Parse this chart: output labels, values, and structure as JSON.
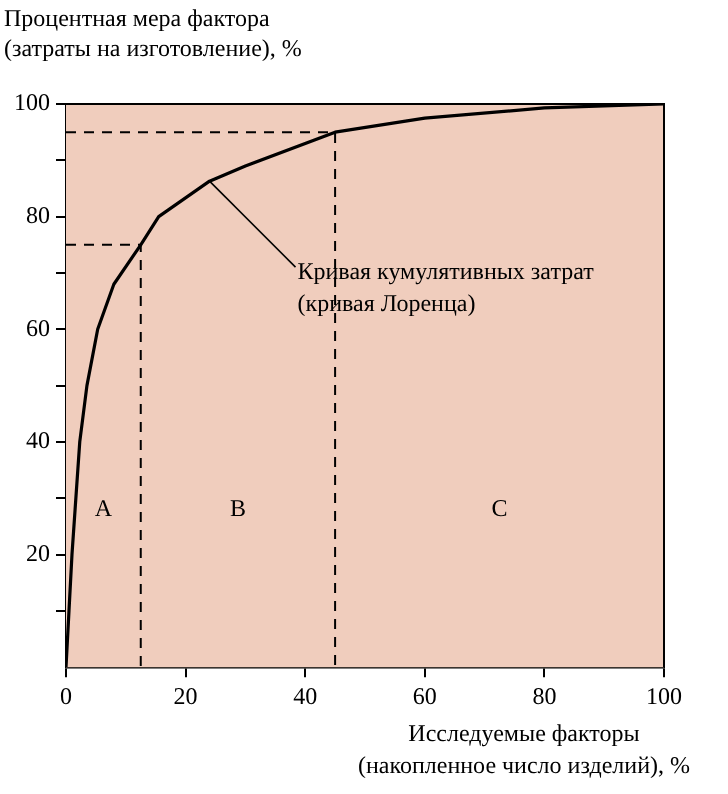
{
  "chart_data": {
    "type": "line",
    "ylabel": "Процентная мера фактора\n(затраты на изготовление), %",
    "xlabel": "Исследуемые факторы\n(накопленное число изделий), %",
    "xlim": [
      0,
      100
    ],
    "xticks": [
      0,
      20,
      40,
      60,
      80,
      100
    ],
    "ylim": [
      0,
      100
    ],
    "yticks": [
      {
        "value": 10,
        "label": null
      },
      20,
      {
        "value": 30,
        "label": null
      },
      40,
      {
        "value": 50,
        "label": null
      },
      60,
      {
        "value": 70,
        "label": null
      },
      80,
      {
        "value": 90,
        "label": null
      },
      100
    ],
    "marker": "none",
    "series": [
      {
        "color": "#000000",
        "line_style": "solid",
        "x": [
          0,
          0.5,
          1,
          2.3,
          3.5,
          5.3,
          8,
          12.5,
          15.5,
          24,
          30,
          45,
          60,
          80,
          100
        ],
        "values": [
          0,
          10,
          20,
          40,
          50,
          60,
          68,
          75,
          80,
          86.3,
          89,
          95,
          97.5,
          99.3,
          100
        ]
      },
      {
        "color": "#000000",
        "line_style": "dashed",
        "x": [
          0,
          12.5,
          12.5
        ],
        "values": [
          75,
          75,
          0
        ]
      },
      {
        "color": "#000000",
        "line_style": "dashed",
        "x": [
          0,
          45,
          45
        ],
        "values": [
          95,
          95,
          0
        ]
      }
    ],
    "annotations": [
      {
        "text": "Кривая кумулятивных затрат\n(кривая Лоренца)",
        "x": 24,
        "y": 86.3
      },
      "A",
      "B",
      "C"
    ]
  }
}
